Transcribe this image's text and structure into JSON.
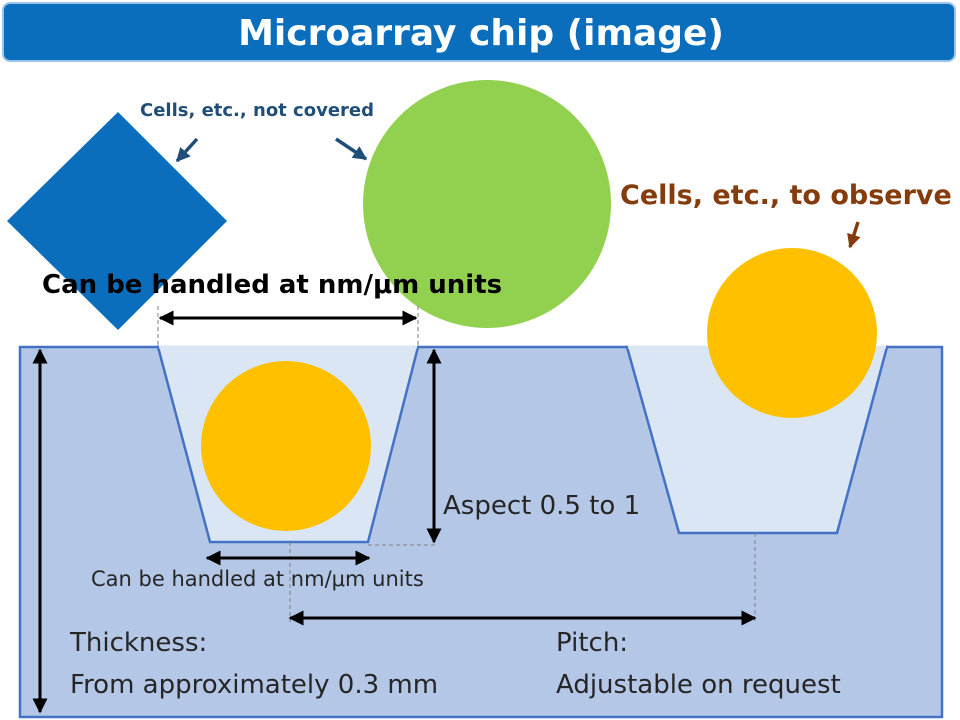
{
  "title": "Microarray chip (image)",
  "labels": {
    "not_covered": "Cells, etc., not covered",
    "to_observe": "Cells, etc., to observe",
    "top_width": "Can be handled at nm/μm units",
    "aspect": "Aspect 0.5 to 1",
    "bottom_width": "Can be handled at nm/μm units",
    "thickness_line1": "Thickness:",
    "thickness_line2": "From approximately 0.3 mm",
    "pitch_line1": "Pitch:",
    "pitch_line2": "Adjustable on request"
  },
  "colors": {
    "title_bar": "#0a6ebd",
    "chip_fill": "#b4c7e7",
    "chip_border": "#4472c4",
    "well_fill": "#dae6f4",
    "diamond": "#0a6ebd",
    "green_circle": "#92d050",
    "orange_circle": "#ffc000",
    "label_blue": "#1f4e79",
    "label_brown": "#843c0c"
  }
}
